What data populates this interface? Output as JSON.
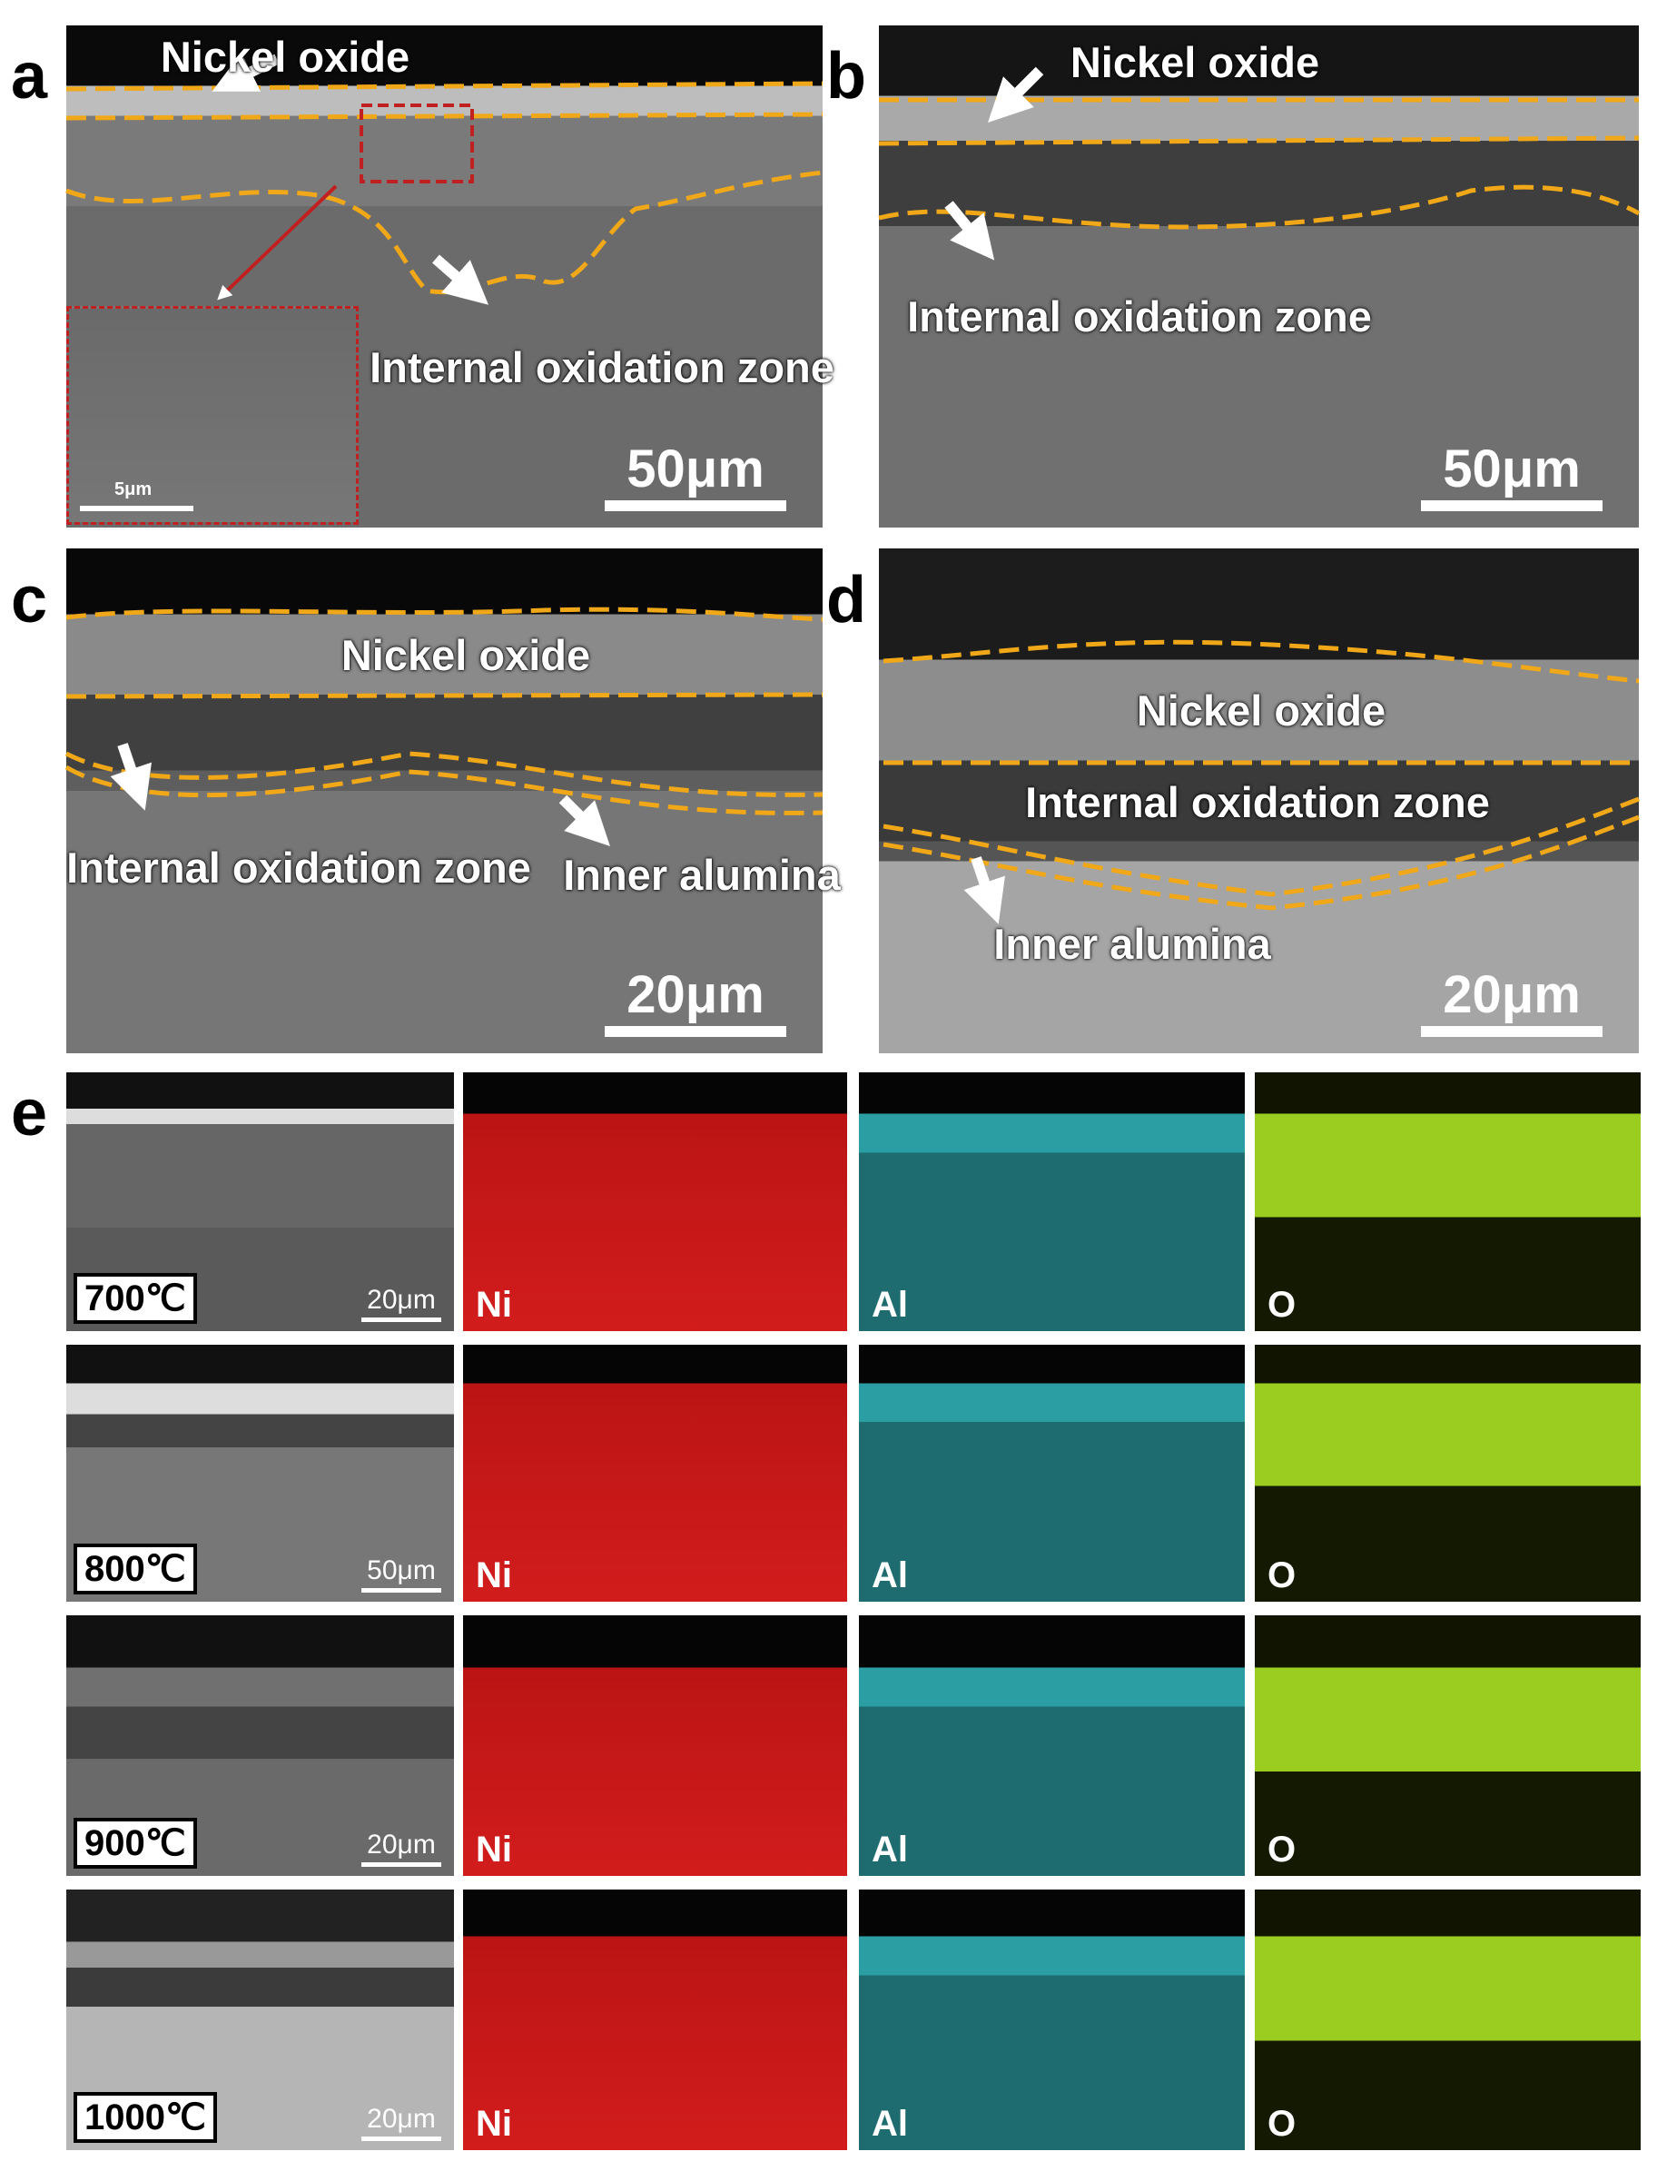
{
  "panels": [
    {
      "label": "a",
      "annotations": [
        "Nickel oxide",
        "Internal oxidation zone"
      ],
      "scale_bar": "50μm",
      "inset_scale_bar": "5μm"
    },
    {
      "label": "b",
      "annotations": [
        "Nickel oxide",
        "Internal oxidation zone"
      ],
      "scale_bar": "50μm"
    },
    {
      "label": "c",
      "annotations": [
        "Nickel oxide",
        "Internal oxidation zone",
        "Inner alumina"
      ],
      "scale_bar": "20μm"
    },
    {
      "label": "d",
      "annotations": [
        "Nickel oxide",
        "Internal oxidation zone",
        "Inner alumina"
      ],
      "scale_bar": "20μm"
    }
  ],
  "mapping": {
    "label": "e",
    "elements": [
      "Ni",
      "Al",
      "O"
    ],
    "rows": [
      {
        "temperature": "700℃",
        "scale_bar": "20μm"
      },
      {
        "temperature": "800℃",
        "scale_bar": "50μm"
      },
      {
        "temperature": "900℃",
        "scale_bar": "20μm"
      },
      {
        "temperature": "1000℃",
        "scale_bar": "20μm"
      }
    ]
  }
}
